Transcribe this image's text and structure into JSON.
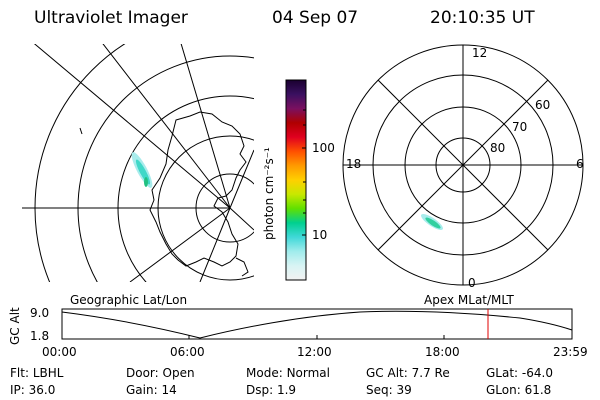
{
  "header": {
    "instrument": "Ultraviolet Imager",
    "date": "04 Sep 07",
    "time": "20:10:35 UT"
  },
  "colorbar": {
    "label": "photon cm⁻²s⁻¹",
    "ticks": [
      "100",
      "10"
    ],
    "stops": [
      "#1a0030",
      "#3a1060",
      "#7a1060",
      "#b00000",
      "#e00020",
      "#ff5000",
      "#ff9a00",
      "#ffd000",
      "#c8e800",
      "#60e000",
      "#00d090",
      "#40d8d8",
      "#a0ecec",
      "#d8f4f4",
      "#f2f2f2"
    ]
  },
  "polar_plot": {
    "mlt_labels": {
      "top": "12",
      "left": "18",
      "right": "6",
      "bottom": "0"
    },
    "mlat_labels": [
      "60",
      "70",
      "80"
    ]
  },
  "panel_labels": {
    "left": "Geographic Lat/Lon",
    "right": "Apex MLat/MLT"
  },
  "altitude_plot": {
    "ylabel": "GC Alt",
    "ymax_label": "9.0",
    "ymin_label": "1.8",
    "x_labels": [
      "00:00",
      "06:00",
      "12:00",
      "18:00",
      "23:59"
    ],
    "marker_color": "#e00000"
  },
  "info": {
    "flt_label": "Flt:",
    "flt_value": "LBHL",
    "door_label": "Door:",
    "door_value": "Open",
    "mode_label": "Mode:",
    "mode_value": "Normal",
    "gcalt_label": "GC Alt:",
    "gcalt_value": "7.7 Re",
    "glat_label": "GLat:",
    "glat_value": "-64.0",
    "ip_label": "IP:",
    "ip_value": "36.0",
    "gain_label": "Gain:",
    "gain_value": "14",
    "dsp_label": "Dsp:",
    "dsp_value": "1.9",
    "seq_label": "Seq:",
    "seq_value": "39",
    "glon_label": "GLon:",
    "glon_value": "61.8"
  }
}
